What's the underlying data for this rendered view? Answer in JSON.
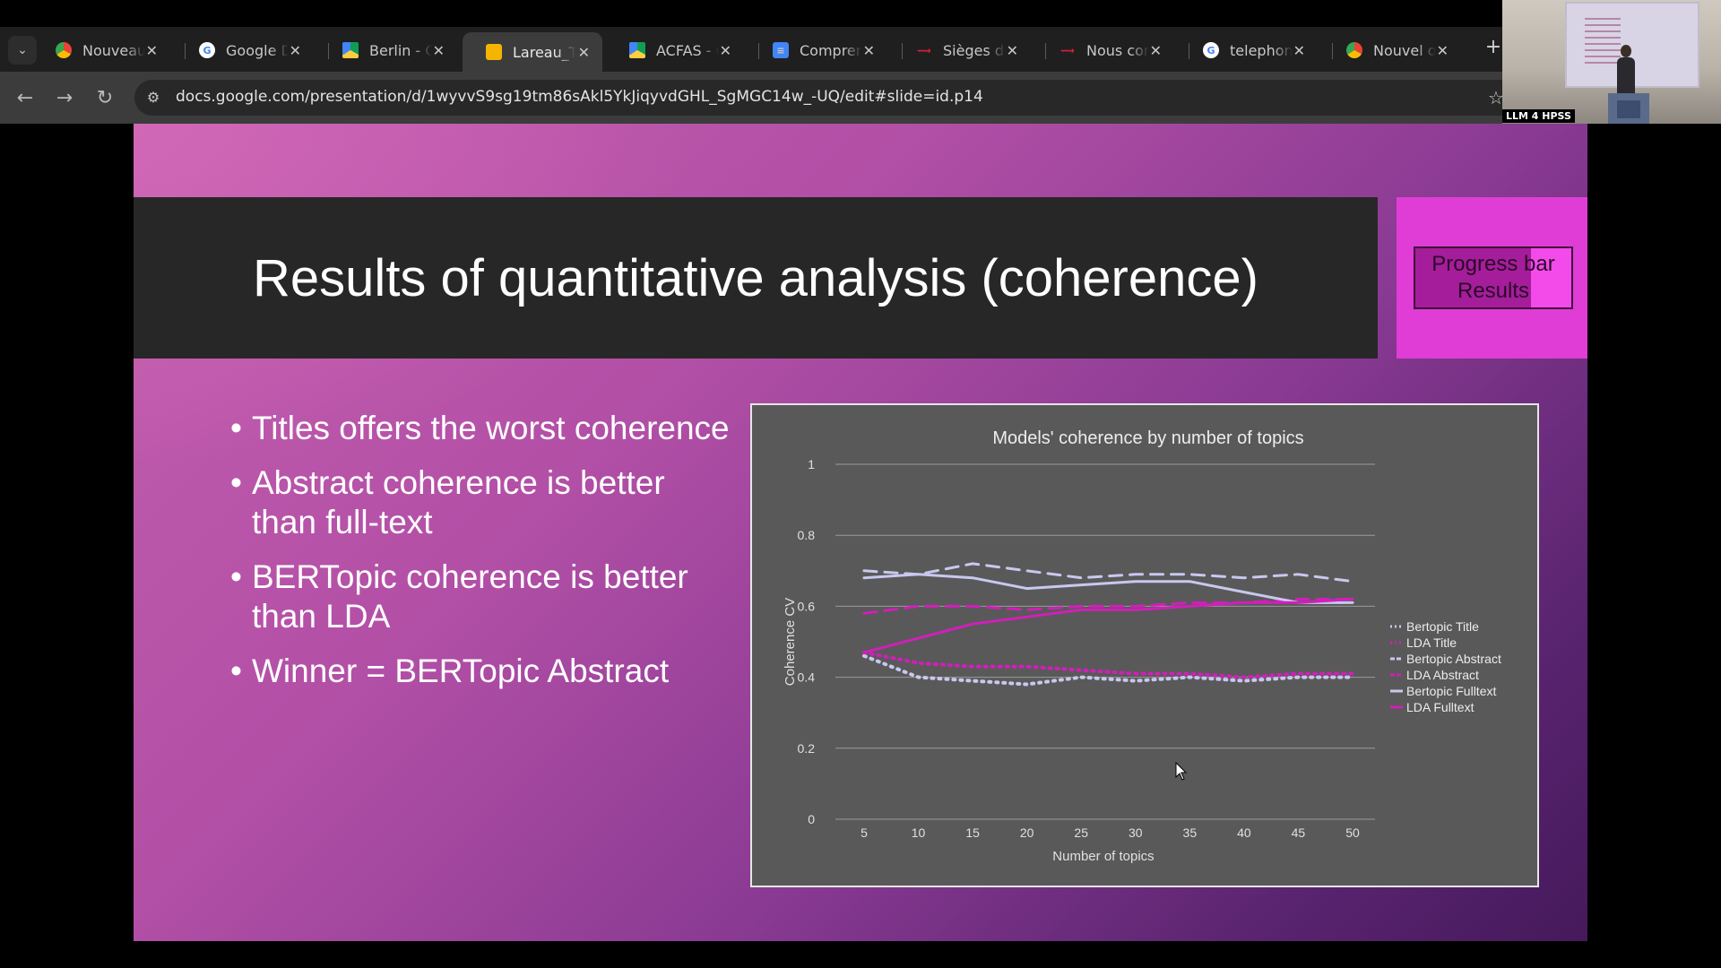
{
  "browser": {
    "tabs": [
      {
        "title": "Nouveauté",
        "icon": "chrome-icon",
        "active": false
      },
      {
        "title": "Google Dr",
        "icon": "google-icon",
        "active": false
      },
      {
        "title": "Berlin - Go",
        "icon": "google-drive-icon",
        "active": false
      },
      {
        "title": "Lareau_Titl",
        "icon": "google-slides-icon",
        "active": true
      },
      {
        "title": "ACFAS - Go",
        "icon": "google-drive-icon",
        "active": false
      },
      {
        "title": "Comprend",
        "icon": "google-docs-icon",
        "active": false
      },
      {
        "title": "Sièges de",
        "icon": "red-logo-icon",
        "active": false
      },
      {
        "title": "Nous cont",
        "icon": "red-logo-icon",
        "active": false
      },
      {
        "title": "telephone",
        "icon": "google-icon",
        "active": false
      },
      {
        "title": "Nouvel on",
        "icon": "chrome-icon",
        "active": false
      }
    ],
    "close_glyph": "✕",
    "new_tab_glyph": "+",
    "url": "docs.google.com/presentation/d/1wyvvS9sg19tm86sAkl5YkJiqyvdGHL_SgMGC14w_-UQ/edit#slide=id.p14"
  },
  "webcam": {
    "label": "LLM 4 HPSS"
  },
  "slide": {
    "title": "Results of quantitative analysis (coherence)",
    "progress_bar": {
      "line1": "Progress bar",
      "line2": "Results",
      "fill_fraction": 0.74
    },
    "bullets": [
      "Titles offers the worst coherence",
      "Abstract coherence is better than full-text",
      "BERTopic coherence is better than LDA",
      "Winner = BERTopic Abstract"
    ]
  },
  "chart_data": {
    "type": "line",
    "title": "Models' coherence by number of topics",
    "xlabel": "Number of topics",
    "ylabel": "Coherence CV",
    "x": [
      5,
      10,
      15,
      20,
      25,
      30,
      35,
      40,
      45,
      50
    ],
    "ylim": [
      0,
      1
    ],
    "yticks": [
      "0",
      "0.2",
      "0.4",
      "0.6",
      "0.8",
      "1"
    ],
    "grid": true,
    "legend_position": "right",
    "series": [
      {
        "name": "Bertopic Title",
        "color": "#c8c8f0",
        "style": "dotted",
        "values": [
          0.46,
          0.4,
          0.39,
          0.38,
          0.4,
          0.39,
          0.4,
          0.39,
          0.4,
          0.4
        ]
      },
      {
        "name": "LDA Title",
        "color": "#d11fba",
        "style": "dotted",
        "values": [
          0.47,
          0.44,
          0.43,
          0.43,
          0.42,
          0.41,
          0.41,
          0.4,
          0.41,
          0.41
        ]
      },
      {
        "name": "Bertopic Abstract",
        "color": "#c8c8f0",
        "style": "dashed",
        "values": [
          0.7,
          0.69,
          0.72,
          0.7,
          0.68,
          0.69,
          0.69,
          0.68,
          0.69,
          0.67
        ]
      },
      {
        "name": "LDA Abstract",
        "color": "#d11fba",
        "style": "dashed",
        "values": [
          0.58,
          0.6,
          0.6,
          0.59,
          0.6,
          0.6,
          0.61,
          0.61,
          0.62,
          0.62
        ]
      },
      {
        "name": "Bertopic Fulltext",
        "color": "#c8c8f0",
        "style": "solid",
        "values": [
          0.68,
          0.69,
          0.68,
          0.65,
          0.66,
          0.67,
          0.67,
          0.64,
          0.61,
          0.61
        ]
      },
      {
        "name": "LDA Fulltext",
        "color": "#d11fba",
        "style": "solid",
        "values": [
          0.47,
          0.51,
          0.55,
          0.57,
          0.59,
          0.59,
          0.6,
          0.61,
          0.61,
          0.62
        ]
      }
    ]
  }
}
